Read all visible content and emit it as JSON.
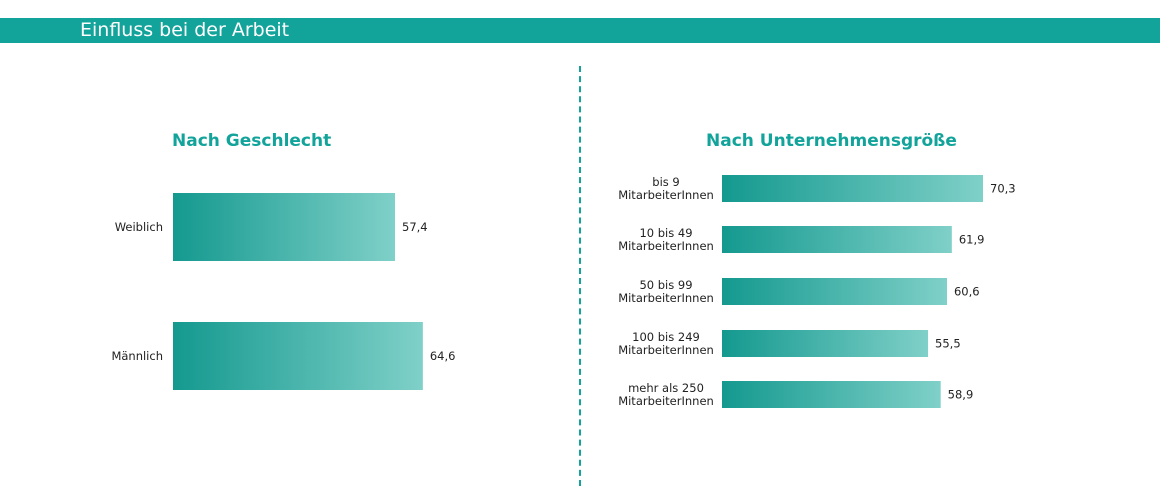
{
  "header": {
    "title": "Einfluss bei der Arbeit"
  },
  "colors": {
    "accent": "#12a39a",
    "bar_start": "#14998f",
    "bar_end": "#7fd0c8"
  },
  "chart_data": [
    {
      "type": "bar",
      "orientation": "horizontal",
      "title": "Nach Geschlecht",
      "categories": [
        "Weiblich",
        "Männlich"
      ],
      "values": [
        57.4,
        64.6
      ],
      "value_labels": [
        "57,4",
        "64,6"
      ]
    },
    {
      "type": "bar",
      "orientation": "horizontal",
      "title": "Nach Unternehmensgröße",
      "categories": [
        [
          "bis 9",
          "MitarbeiterInnen"
        ],
        [
          "10 bis 49",
          "MitarbeiterInnen"
        ],
        [
          "50 bis 99",
          "MitarbeiterInnen"
        ],
        [
          "100 bis 249",
          "MitarbeiterInnen"
        ],
        [
          "mehr als 250",
          "MitarbeiterInnen"
        ]
      ],
      "values": [
        70.3,
        61.9,
        60.6,
        55.5,
        58.9
      ],
      "value_labels": [
        "70,3",
        "61,9",
        "60,6",
        "55,5",
        "58,9"
      ]
    }
  ]
}
